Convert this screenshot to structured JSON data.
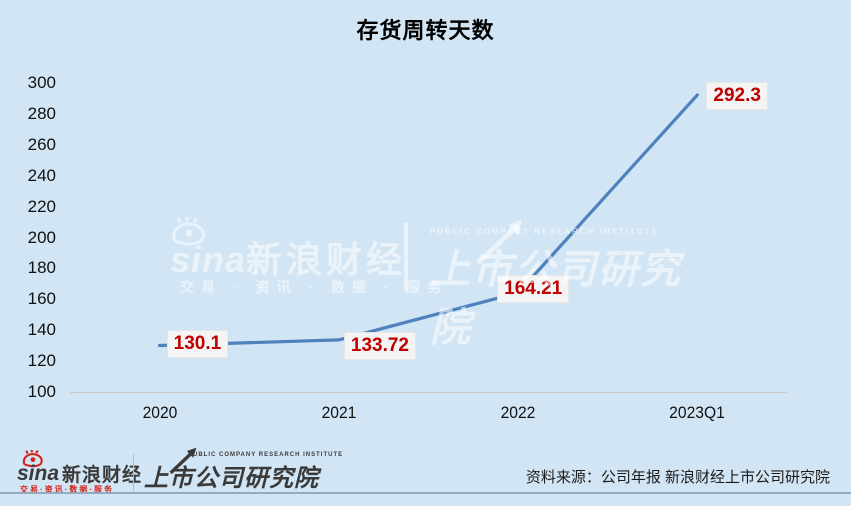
{
  "title": "存货周转天数",
  "chart_data": {
    "type": "line",
    "title": "存货周转天数",
    "categories": [
      "2020",
      "2021",
      "2022",
      "2023Q1"
    ],
    "series": [
      {
        "name": "存货周转天数",
        "values": [
          130.1,
          133.72,
          164.21,
          292.3
        ]
      }
    ],
    "data_labels": [
      "130.1",
      "133.72",
      "164.21",
      "292.3"
    ],
    "xlabel": "",
    "ylabel": "",
    "ylim": [
      100,
      300
    ],
    "yticks": [
      100,
      120,
      140,
      160,
      180,
      200,
      220,
      240,
      260,
      280,
      300
    ],
    "grid": false,
    "legend": "none",
    "line_color": "#4f81bd",
    "data_label_color": "#c00000",
    "data_label_bg": "#f4f4f4"
  },
  "watermark": {
    "sina_text": "sina",
    "brand": "新浪财经",
    "tagline": "交易 · 资讯 · 数据 · 服务",
    "institute": "上市公司研究院",
    "institute_en": "PUBLIC COMPANY RESEARCH INSTITUTE"
  },
  "footer": {
    "sina_text": "sina",
    "brand": "新浪财经",
    "tagline": "交易·资讯·数据·服务",
    "institute": "上市公司研究院",
    "institute_en": "PUBLIC COMPANY RESEARCH INSTITUTE",
    "source": "资料来源：公司年报 新浪财经上市公司研究院"
  },
  "colors": {
    "background": "#d2e5f4",
    "line": "#4f81bd",
    "axis_line": "#c8c8c8",
    "divider": "#93abc1",
    "sina_red": "#d2231a",
    "footer_text": "#3a3a3a"
  }
}
